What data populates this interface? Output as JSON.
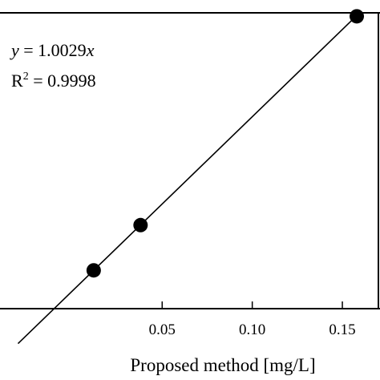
{
  "chart_data": {
    "type": "scatter",
    "title": "",
    "xlabel": "Proposed method [mg/L]",
    "ylabel": "",
    "xlim": [
      -0.04,
      0.17
    ],
    "ylim": [
      -0.01,
      0.16
    ],
    "x_ticks": [
      {
        "value": 0.05,
        "label": "0.05"
      },
      {
        "value": 0.1,
        "label": "0.10"
      },
      {
        "value": 0.15,
        "label": "0.15"
      }
    ],
    "points": [
      {
        "x": 0.012,
        "y": 0.012
      },
      {
        "x": 0.038,
        "y": 0.038
      },
      {
        "x": 0.158,
        "y": 0.158
      }
    ],
    "fit_line": {
      "slope": 1.0029,
      "intercept": 0
    },
    "annotations": {
      "equation_var": "y",
      "equation_rest": " = 1.0029",
      "equation_x": "x",
      "r2_base": "R",
      "r2_exp": "2",
      "r2_rest": " = 0.9998"
    },
    "grid": false,
    "legend": "none",
    "colors": {
      "marker": "#000000",
      "line": "#000000",
      "axes": "#000000"
    }
  }
}
